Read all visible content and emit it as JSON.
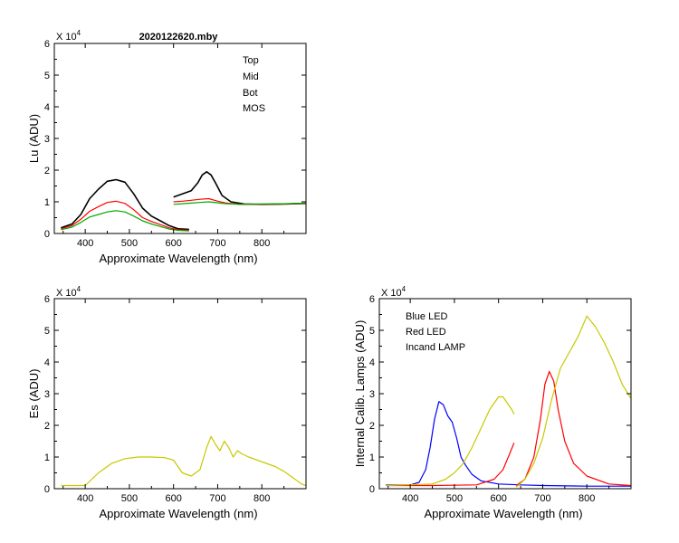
{
  "chart_data": [
    {
      "type": "line",
      "title": "2020122620.mby",
      "xlabel": "Approximate Wavelength (nm)",
      "ylabel": "Lu (ADU)",
      "multiplier": "X 10",
      "multiplier_exp": "4",
      "xlim": [
        330,
        900
      ],
      "ylim": [
        0,
        6
      ],
      "xticks": [
        "400",
        "500",
        "600",
        "700",
        "800"
      ],
      "yticks": [
        "0",
        "1",
        "2",
        "3",
        "4",
        "5",
        "6"
      ],
      "legend": [
        "Top",
        "Mid",
        "Bot",
        "MOS"
      ],
      "legend_position": "top-right",
      "series": [
        {
          "name": "Top",
          "color": "#000000",
          "segments": [
            {
              "x": [
                345,
                370,
                390,
                410,
                430,
                450,
                470,
                490,
                510,
                530,
                550,
                570,
                590,
                610,
                635
              ],
              "y": [
                0.18,
                0.3,
                0.6,
                1.1,
                1.4,
                1.65,
                1.7,
                1.62,
                1.25,
                0.8,
                0.55,
                0.4,
                0.25,
                0.15,
                0.13
              ]
            },
            {
              "x": [
                600,
                620,
                640,
                655,
                665,
                675,
                685,
                695,
                710,
                730,
                760,
                800,
                850,
                900
              ],
              "y": [
                1.15,
                1.25,
                1.35,
                1.6,
                1.85,
                1.95,
                1.85,
                1.6,
                1.2,
                1.0,
                0.93,
                0.92,
                0.93,
                0.95
              ]
            }
          ]
        },
        {
          "name": "Mid",
          "color": "#ff0000",
          "segments": [
            {
              "x": [
                345,
                370,
                390,
                410,
                430,
                450,
                470,
                490,
                510,
                530,
                550,
                570,
                590,
                610,
                635
              ],
              "y": [
                0.15,
                0.25,
                0.45,
                0.7,
                0.85,
                0.98,
                1.02,
                0.95,
                0.75,
                0.5,
                0.38,
                0.28,
                0.18,
                0.12,
                0.1
              ]
            },
            {
              "x": [
                600,
                620,
                640,
                660,
                680,
                700,
                720,
                750,
                800,
                850,
                900
              ],
              "y": [
                1.0,
                1.02,
                1.05,
                1.08,
                1.1,
                1.02,
                0.96,
                0.92,
                0.92,
                0.93,
                0.95
              ]
            }
          ]
        },
        {
          "name": "Bot",
          "color": "#00aa00",
          "segments": [
            {
              "x": [
                345,
                370,
                390,
                410,
                430,
                450,
                470,
                490,
                510,
                530,
                550,
                570,
                590,
                610,
                635
              ],
              "y": [
                0.12,
                0.2,
                0.35,
                0.52,
                0.6,
                0.68,
                0.72,
                0.68,
                0.55,
                0.4,
                0.3,
                0.22,
                0.14,
                0.1,
                0.08
              ]
            },
            {
              "x": [
                600,
                620,
                640,
                660,
                680,
                700,
                720,
                750,
                800,
                850,
                900
              ],
              "y": [
                0.92,
                0.94,
                0.96,
                0.98,
                1.0,
                0.97,
                0.94,
                0.92,
                0.93,
                0.94,
                0.96
              ]
            }
          ]
        },
        {
          "name": "MOS",
          "color": "#0000ff",
          "segments": []
        }
      ]
    },
    {
      "type": "line",
      "title": "",
      "xlabel": "Approximate Wavelength (nm)",
      "ylabel": "Es  (ADU)",
      "multiplier": "X 10",
      "multiplier_exp": "4",
      "xlim": [
        330,
        900
      ],
      "ylim": [
        0,
        6
      ],
      "xticks": [
        "400",
        "500",
        "600",
        "700",
        "800"
      ],
      "yticks": [
        "0",
        "1",
        "2",
        "3",
        "4",
        "5",
        "6"
      ],
      "legend": [],
      "series": [
        {
          "name": "Es",
          "color": "#c8c800",
          "segments": [
            {
              "x": [
                345,
                400,
                430,
                460,
                490,
                520,
                550,
                580,
                600,
                620,
                640,
                660,
                675,
                685,
                695,
                705,
                715,
                725,
                735,
                745,
                755,
                770,
                790,
                810,
                830,
                850,
                870,
                890,
                900
              ],
              "y": [
                0.1,
                0.1,
                0.5,
                0.8,
                0.95,
                1.0,
                1.0,
                0.98,
                0.9,
                0.5,
                0.4,
                0.6,
                1.3,
                1.65,
                1.4,
                1.2,
                1.5,
                1.3,
                1.0,
                1.2,
                1.1,
                1.0,
                0.9,
                0.8,
                0.7,
                0.55,
                0.35,
                0.15,
                0.1
              ]
            }
          ]
        }
      ]
    },
    {
      "type": "line",
      "title": "",
      "xlabel": "Approximate Wavelength (nm)",
      "ylabel": "Internal Calib. Lamps  (ADU)",
      "multiplier": "X 10",
      "multiplier_exp": "4",
      "xlim": [
        330,
        900
      ],
      "ylim": [
        0,
        6
      ],
      "xticks": [
        "400",
        "500",
        "600",
        "700",
        "800"
      ],
      "yticks": [
        "0",
        "1",
        "2",
        "3",
        "4",
        "5",
        "6"
      ],
      "legend": [
        "Blue LED",
        "Red LED",
        "Incand LAMP"
      ],
      "legend_position": "top-left",
      "series": [
        {
          "name": "Blue LED",
          "color": "#0000ff",
          "segments": [
            {
              "x": [
                345,
                400,
                420,
                435,
                445,
                455,
                465,
                475,
                485,
                495,
                505,
                515,
                525,
                540,
                560,
                600,
                650,
                700,
                800,
                900
              ],
              "y": [
                0.12,
                0.12,
                0.2,
                0.6,
                1.3,
                2.2,
                2.75,
                2.65,
                2.3,
                2.1,
                1.6,
                1.0,
                0.75,
                0.45,
                0.25,
                0.15,
                0.12,
                0.1,
                0.08,
                0.08
              ]
            }
          ]
        },
        {
          "name": "Red LED",
          "color": "#ff0000",
          "segments": [
            {
              "x": [
                345,
                450,
                550,
                590,
                610,
                625,
                635
              ],
              "y": [
                0.1,
                0.1,
                0.12,
                0.3,
                0.6,
                1.1,
                1.45
              ]
            },
            {
              "x": [
                640,
                660,
                680,
                695,
                705,
                715,
                725,
                735,
                750,
                770,
                800,
                850,
                900
              ],
              "y": [
                0.1,
                0.3,
                1.0,
                2.2,
                3.3,
                3.7,
                3.4,
                2.5,
                1.5,
                0.8,
                0.4,
                0.15,
                0.1
              ]
            }
          ]
        },
        {
          "name": "Incand LAMP",
          "color": "#c8c800",
          "segments": [
            {
              "x": [
                345,
                450,
                480,
                500,
                520,
                540,
                560,
                580,
                600,
                610,
                620,
                630,
                635
              ],
              "y": [
                0.1,
                0.15,
                0.3,
                0.5,
                0.8,
                1.3,
                1.9,
                2.5,
                2.9,
                2.9,
                2.7,
                2.5,
                2.35
              ]
            },
            {
              "x": [
                640,
                660,
                680,
                700,
                720,
                740,
                760,
                780,
                800,
                820,
                840,
                860,
                880,
                900
              ],
              "y": [
                0.05,
                0.3,
                0.8,
                1.6,
                2.8,
                3.8,
                4.3,
                4.8,
                5.45,
                5.1,
                4.6,
                4.0,
                3.3,
                2.85
              ]
            }
          ]
        }
      ]
    }
  ]
}
